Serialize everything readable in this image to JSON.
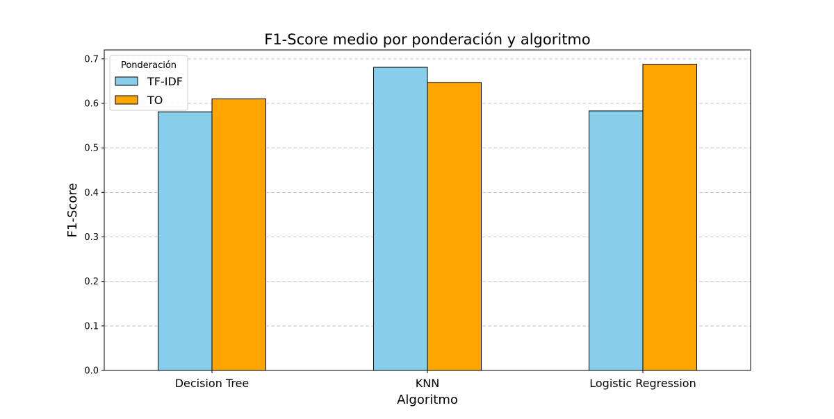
{
  "chart_data": {
    "type": "bar",
    "title": "F1-Score medio por ponderación y algoritmo",
    "xlabel": "Algoritmo",
    "ylabel": "F1-Score",
    "categories": [
      "Decision Tree",
      "KNN",
      "Logistic Regression"
    ],
    "series": [
      {
        "name": "TF-IDF",
        "values": [
          0.581,
          0.681,
          0.583
        ],
        "color": "#87CEEB"
      },
      {
        "name": "TO",
        "values": [
          0.61,
          0.647,
          0.688
        ],
        "color": "#FFA500"
      }
    ],
    "ylim": [
      0,
      0.72
    ],
    "yticks": [
      "0.0",
      "0.1",
      "0.2",
      "0.3",
      "0.4",
      "0.5",
      "0.6",
      "0.7"
    ],
    "grid": "y-dashed",
    "legend": {
      "title": "Ponderación",
      "placement": "top-left"
    }
  }
}
